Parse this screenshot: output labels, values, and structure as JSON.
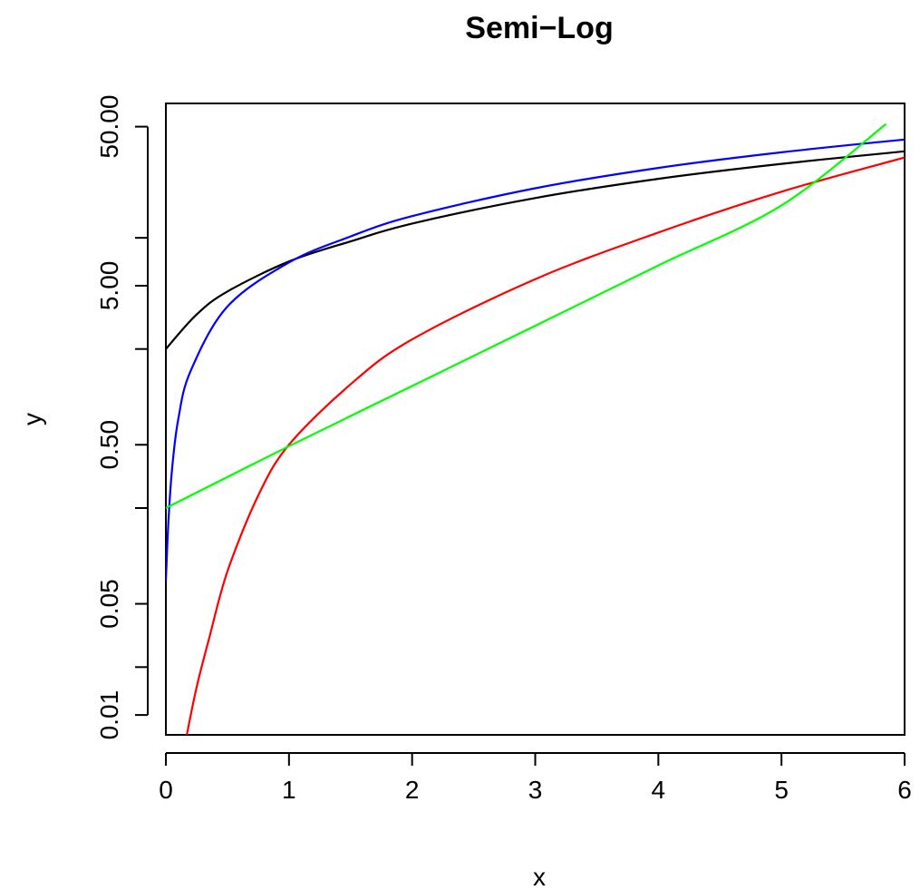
{
  "chart_data": {
    "type": "line",
    "title": "Semi−Log",
    "xlabel": "x",
    "ylabel": "y",
    "xlim": [
      0,
      6
    ],
    "ylim": [
      0.0075,
      70
    ],
    "y_log_scale": true,
    "grid": false,
    "x_ticks": [
      {
        "value": 0,
        "label": "0"
      },
      {
        "value": 1,
        "label": "1"
      },
      {
        "value": 2,
        "label": "2"
      },
      {
        "value": 3,
        "label": "3"
      },
      {
        "value": 4,
        "label": "4"
      },
      {
        "value": 5,
        "label": "5"
      },
      {
        "value": 6,
        "label": "6"
      }
    ],
    "y_ticks": [
      {
        "value": 0.01,
        "label": "0.01"
      },
      {
        "value": 0.02,
        "label": ""
      },
      {
        "value": 0.05,
        "label": "0.05"
      },
      {
        "value": 0.2,
        "label": ""
      },
      {
        "value": 0.5,
        "label": "0.50"
      },
      {
        "value": 2,
        "label": ""
      },
      {
        "value": 5,
        "label": "5.00"
      },
      {
        "value": 10,
        "label": ""
      },
      {
        "value": 50,
        "label": "50.00"
      }
    ],
    "series": [
      {
        "color": "#000000",
        "x": [
          0,
          0.25,
          0.5,
          1,
          1.5,
          2,
          3,
          4,
          5,
          6
        ],
        "y": [
          2,
          3.3,
          4.6,
          7.1,
          9.5,
          12.3,
          17.8,
          23.5,
          29.2,
          35.0
        ]
      },
      {
        "color": "#0000ff",
        "x": [
          0,
          0.02,
          0.05,
          0.1,
          0.2,
          0.5,
          1,
          1.5,
          2,
          3,
          4,
          5,
          6
        ],
        "y": [
          0.07,
          0.16,
          0.35,
          0.72,
          1.45,
          3.7,
          7.0,
          10.2,
          13.7,
          20.5,
          27.5,
          34.5,
          41.5
        ]
      },
      {
        "color": "#ff0000",
        "x": [
          0.17,
          0.25,
          0.35,
          0.5,
          0.75,
          1,
          1.5,
          2,
          3,
          4,
          5,
          6
        ],
        "y": [
          0.0075,
          0.015,
          0.03,
          0.08,
          0.24,
          0.5,
          1.2,
          2.3,
          5.5,
          10.8,
          19.5,
          32.0
        ]
      },
      {
        "color": "#00ff00",
        "x": [
          0,
          1,
          2,
          3,
          4,
          5,
          5.85
        ],
        "y": [
          0.2,
          0.49,
          1.17,
          2.8,
          6.7,
          16.0,
          52.0
        ]
      }
    ]
  }
}
